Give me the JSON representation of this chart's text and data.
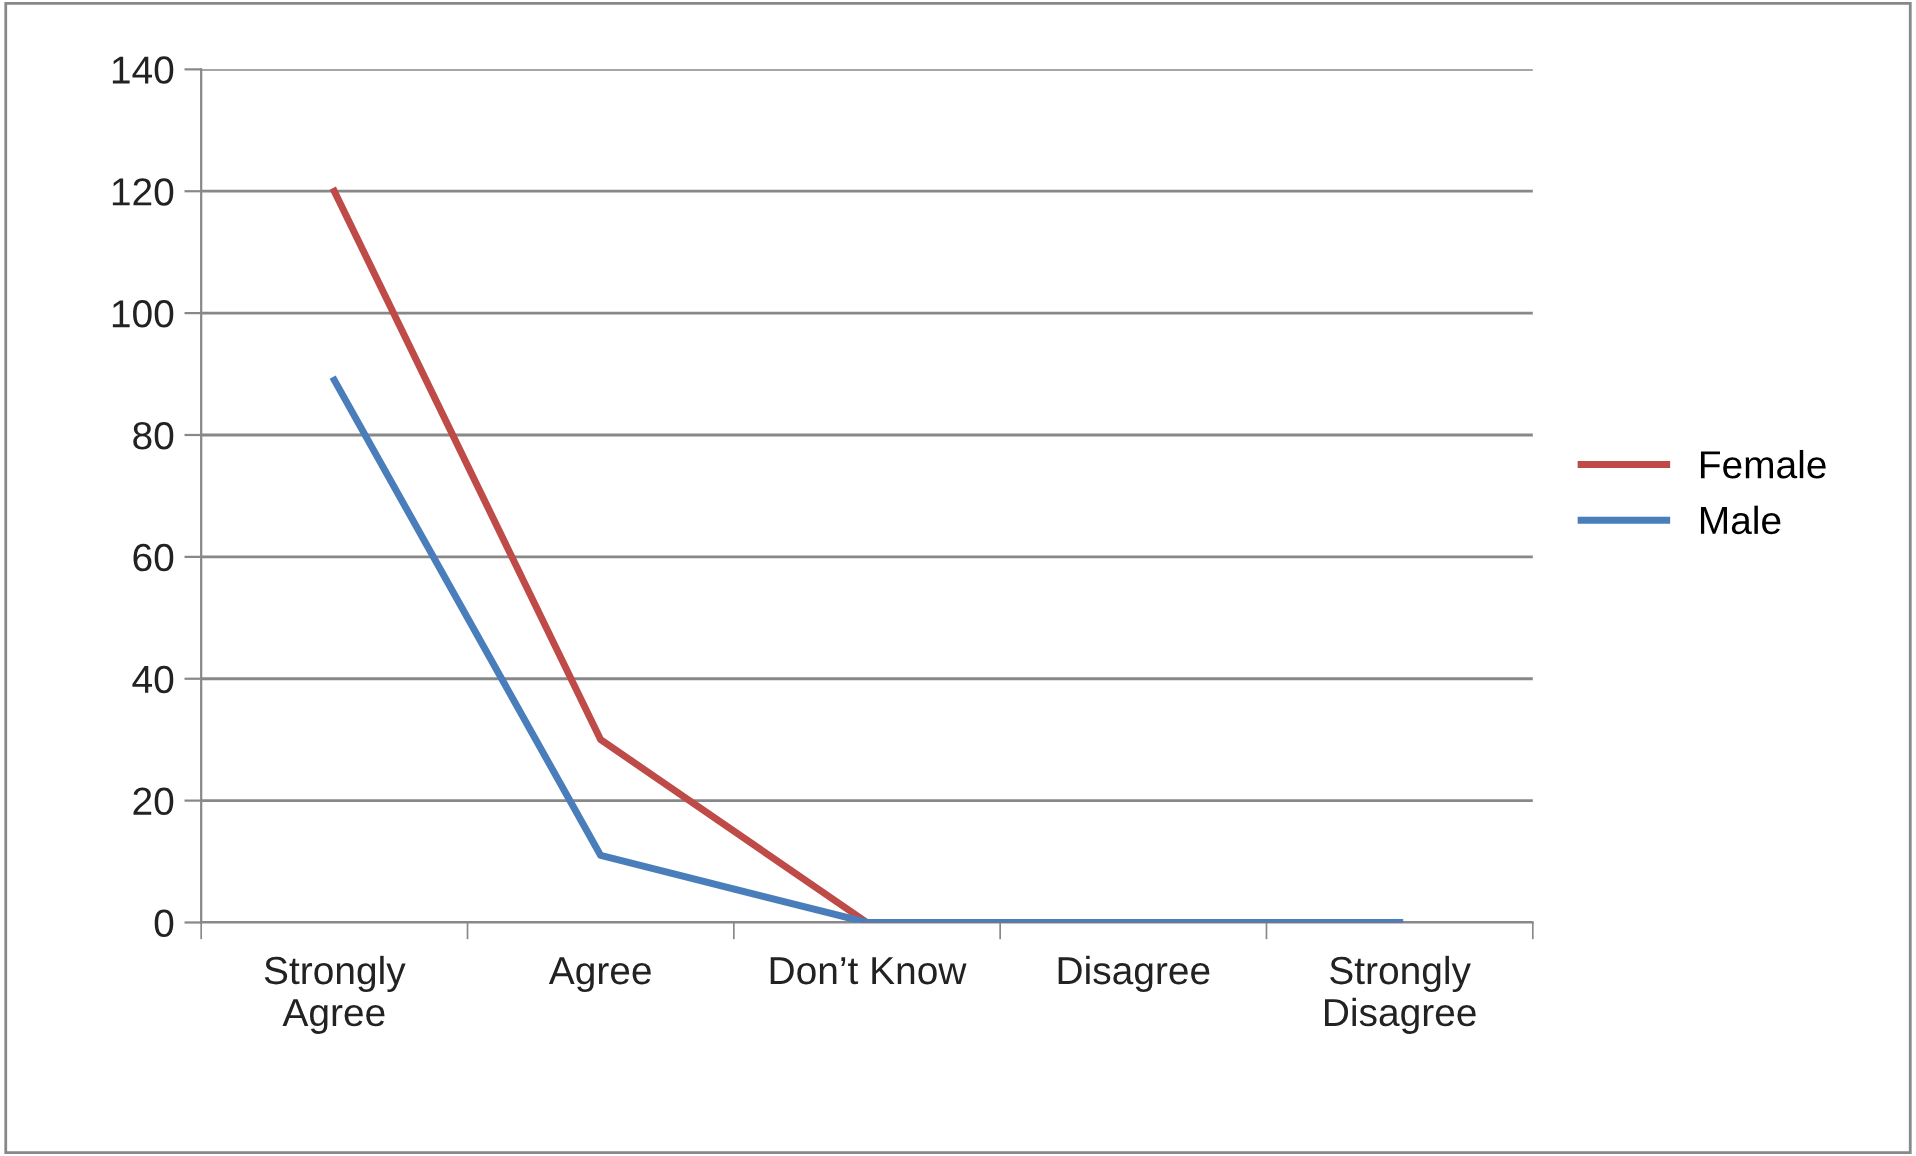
{
  "chart_data": {
    "type": "line",
    "categories": [
      "Strongly\nAgree",
      "Agree",
      "Don’t Know",
      "Disagree",
      "Strongly\nDisagree"
    ],
    "series": [
      {
        "name": "Female",
        "color": "#be4b48",
        "values": [
          120,
          30,
          0,
          0,
          0
        ]
      },
      {
        "name": "Male",
        "color": "#4a7ebb",
        "values": [
          89,
          11,
          0,
          0,
          0
        ]
      }
    ],
    "ylim": [
      0,
      140
    ],
    "yticks": [
      0,
      20,
      40,
      60,
      80,
      100,
      120,
      140
    ],
    "grid": "y",
    "legend": "right",
    "marker": "none",
    "line_style": "solid"
  }
}
